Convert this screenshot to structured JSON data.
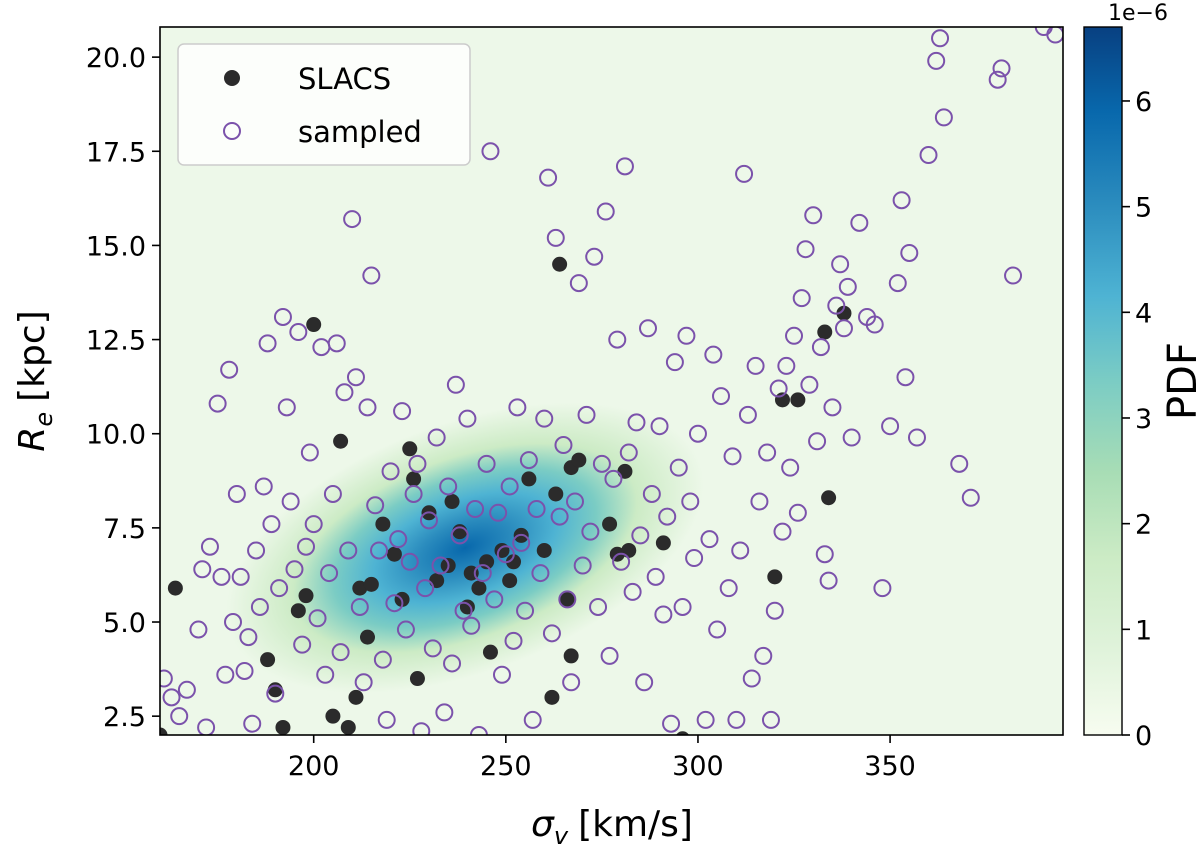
{
  "chart_data": {
    "type": "scatter",
    "xlabel": "σ",
    "xlabel_sub": "v",
    "xlabel_unit": "[km/s]",
    "ylabel": "R",
    "ylabel_sub": "e",
    "ylabel_unit": "[kpc]",
    "xlim": [
      160,
      395
    ],
    "ylim": [
      2.0,
      20.8
    ],
    "x_ticks": [
      200,
      250,
      300,
      350
    ],
    "x_tick_labels": [
      "200",
      "250",
      "300",
      "350"
    ],
    "y_ticks": [
      2.5,
      5.0,
      7.5,
      10.0,
      12.5,
      15.0,
      17.5,
      20.0
    ],
    "y_tick_labels": [
      "2.5",
      "5.0",
      "7.5",
      "10.0",
      "12.5",
      "15.0",
      "17.5",
      "20.0"
    ],
    "legend_position": "top-left",
    "background": {
      "type": "kde-heatmap",
      "colormap": "GnBu",
      "peak": {
        "x": 245,
        "y": 6.8
      },
      "colors": [
        "#f7fcf0",
        "#e0f3db",
        "#ccebc5",
        "#a8ddb5",
        "#7bccc4",
        "#4eb3d3",
        "#2b8cbe",
        "#0868ac",
        "#084081"
      ]
    },
    "colorbar": {
      "label": "PDF",
      "offset_text": "1e−6",
      "min": 0,
      "max": 6.7,
      "ticks": [
        0,
        1,
        2,
        3,
        4,
        5,
        6
      ],
      "tick_labels": [
        "0",
        "1",
        "2",
        "3",
        "4",
        "5",
        "6"
      ]
    },
    "series": [
      {
        "name": "SLACS",
        "marker": "filled-circle",
        "color": "#2b2b2b",
        "points": [
          [
            164,
            5.9
          ],
          [
            160,
            2.0
          ],
          [
            188,
            4.0
          ],
          [
            190,
            3.2
          ],
          [
            192,
            2.2
          ],
          [
            196,
            5.3
          ],
          [
            198,
            5.7
          ],
          [
            200,
            12.9
          ],
          [
            205,
            2.5
          ],
          [
            207,
            9.8
          ],
          [
            209,
            2.2
          ],
          [
            211,
            3.0
          ],
          [
            212,
            5.9
          ],
          [
            214,
            4.6
          ],
          [
            215,
            6.0
          ],
          [
            218,
            7.6
          ],
          [
            221,
            6.8
          ],
          [
            223,
            5.6
          ],
          [
            225,
            9.6
          ],
          [
            226,
            8.8
          ],
          [
            227,
            3.5
          ],
          [
            230,
            7.9
          ],
          [
            232,
            6.1
          ],
          [
            235,
            6.5
          ],
          [
            236,
            8.2
          ],
          [
            238,
            7.4
          ],
          [
            240,
            5.4
          ],
          [
            241,
            6.3
          ],
          [
            243,
            5.9
          ],
          [
            245,
            6.6
          ],
          [
            246,
            4.2
          ],
          [
            249,
            6.9
          ],
          [
            251,
            6.1
          ],
          [
            252,
            6.6
          ],
          [
            254,
            7.3
          ],
          [
            256,
            8.8
          ],
          [
            260,
            6.9
          ],
          [
            262,
            3.0
          ],
          [
            263,
            8.4
          ],
          [
            264,
            14.5
          ],
          [
            266,
            5.6
          ],
          [
            267,
            4.1
          ],
          [
            267,
            9.1
          ],
          [
            269,
            9.3
          ],
          [
            277,
            7.6
          ],
          [
            279,
            6.8
          ],
          [
            281,
            9.0
          ],
          [
            282,
            6.9
          ],
          [
            291,
            7.1
          ],
          [
            296,
            1.9
          ],
          [
            320,
            6.2
          ],
          [
            322,
            10.9
          ],
          [
            326,
            10.9
          ],
          [
            333,
            12.7
          ],
          [
            334,
            8.3
          ],
          [
            338,
            13.2
          ]
        ]
      },
      {
        "name": "sampled",
        "marker": "open-circle",
        "color": "#7b52ab",
        "points": [
          [
            161,
            3.5
          ],
          [
            163,
            3.0
          ],
          [
            165,
            2.5
          ],
          [
            167,
            3.2
          ],
          [
            170,
            4.8
          ],
          [
            171,
            6.4
          ],
          [
            172,
            2.2
          ],
          [
            173,
            7.0
          ],
          [
            175,
            10.8
          ],
          [
            176,
            6.2
          ],
          [
            177,
            3.6
          ],
          [
            178,
            11.7
          ],
          [
            179,
            5.0
          ],
          [
            180,
            8.4
          ],
          [
            181,
            6.2
          ],
          [
            182,
            3.7
          ],
          [
            183,
            4.6
          ],
          [
            184,
            2.3
          ],
          [
            185,
            6.9
          ],
          [
            186,
            5.4
          ],
          [
            187,
            8.6
          ],
          [
            188,
            12.4
          ],
          [
            189,
            7.6
          ],
          [
            190,
            3.1
          ],
          [
            191,
            5.9
          ],
          [
            192,
            13.1
          ],
          [
            193,
            10.7
          ],
          [
            194,
            8.2
          ],
          [
            195,
            6.4
          ],
          [
            196,
            12.7
          ],
          [
            197,
            4.4
          ],
          [
            198,
            7.0
          ],
          [
            199,
            9.5
          ],
          [
            200,
            7.6
          ],
          [
            201,
            5.1
          ],
          [
            202,
            12.3
          ],
          [
            203,
            3.6
          ],
          [
            204,
            6.3
          ],
          [
            205,
            8.4
          ],
          [
            206,
            12.4
          ],
          [
            207,
            4.2
          ],
          [
            208,
            11.1
          ],
          [
            209,
            6.9
          ],
          [
            210,
            15.7
          ],
          [
            211,
            11.5
          ],
          [
            212,
            5.4
          ],
          [
            213,
            3.4
          ],
          [
            214,
            10.7
          ],
          [
            215,
            14.2
          ],
          [
            216,
            8.1
          ],
          [
            217,
            6.9
          ],
          [
            218,
            4.0
          ],
          [
            219,
            2.4
          ],
          [
            220,
            9.0
          ],
          [
            221,
            5.5
          ],
          [
            222,
            7.2
          ],
          [
            223,
            10.6
          ],
          [
            224,
            4.8
          ],
          [
            225,
            6.6
          ],
          [
            226,
            8.4
          ],
          [
            227,
            9.2
          ],
          [
            228,
            2.1
          ],
          [
            229,
            5.9
          ],
          [
            230,
            7.7
          ],
          [
            231,
            4.3
          ],
          [
            232,
            9.9
          ],
          [
            233,
            6.5
          ],
          [
            234,
            2.6
          ],
          [
            235,
            8.6
          ],
          [
            236,
            3.9
          ],
          [
            237,
            11.3
          ],
          [
            238,
            7.3
          ],
          [
            239,
            5.3
          ],
          [
            240,
            10.4
          ],
          [
            241,
            4.9
          ],
          [
            242,
            8.0
          ],
          [
            243,
            2.0
          ],
          [
            244,
            6.3
          ],
          [
            245,
            9.2
          ],
          [
            246,
            17.5
          ],
          [
            247,
            5.6
          ],
          [
            248,
            7.9
          ],
          [
            249,
            3.6
          ],
          [
            250,
            6.8
          ],
          [
            251,
            8.6
          ],
          [
            252,
            4.5
          ],
          [
            253,
            10.7
          ],
          [
            254,
            7.1
          ],
          [
            255,
            5.3
          ],
          [
            256,
            9.3
          ],
          [
            257,
            2.4
          ],
          [
            258,
            8.0
          ],
          [
            259,
            6.3
          ],
          [
            260,
            10.4
          ],
          [
            261,
            16.8
          ],
          [
            262,
            4.7
          ],
          [
            263,
            15.2
          ],
          [
            264,
            7.8
          ],
          [
            265,
            9.7
          ],
          [
            266,
            5.6
          ],
          [
            267,
            3.4
          ],
          [
            268,
            8.2
          ],
          [
            269,
            14.0
          ],
          [
            270,
            6.5
          ],
          [
            271,
            10.5
          ],
          [
            272,
            7.4
          ],
          [
            273,
            14.7
          ],
          [
            274,
            5.4
          ],
          [
            275,
            9.2
          ],
          [
            276,
            15.9
          ],
          [
            277,
            4.1
          ],
          [
            278,
            8.8
          ],
          [
            279,
            12.5
          ],
          [
            280,
            6.6
          ],
          [
            281,
            17.1
          ],
          [
            282,
            9.5
          ],
          [
            283,
            5.8
          ],
          [
            284,
            10.3
          ],
          [
            285,
            7.3
          ],
          [
            286,
            3.4
          ],
          [
            287,
            12.8
          ],
          [
            288,
            8.4
          ],
          [
            289,
            6.2
          ],
          [
            290,
            10.2
          ],
          [
            291,
            5.2
          ],
          [
            292,
            7.8
          ],
          [
            293,
            2.3
          ],
          [
            294,
            11.9
          ],
          [
            295,
            9.1
          ],
          [
            296,
            5.4
          ],
          [
            297,
            12.6
          ],
          [
            298,
            8.2
          ],
          [
            299,
            6.7
          ],
          [
            300,
            10.0
          ],
          [
            302,
            2.4
          ],
          [
            303,
            7.2
          ],
          [
            304,
            12.1
          ],
          [
            305,
            4.8
          ],
          [
            306,
            11.0
          ],
          [
            308,
            5.9
          ],
          [
            309,
            9.4
          ],
          [
            310,
            2.4
          ],
          [
            311,
            6.9
          ],
          [
            312,
            16.9
          ],
          [
            313,
            10.5
          ],
          [
            314,
            3.5
          ],
          [
            315,
            11.8
          ],
          [
            316,
            8.2
          ],
          [
            317,
            4.1
          ],
          [
            318,
            9.5
          ],
          [
            319,
            2.4
          ],
          [
            320,
            5.3
          ],
          [
            321,
            11.2
          ],
          [
            322,
            7.4
          ],
          [
            323,
            11.8
          ],
          [
            324,
            9.1
          ],
          [
            325,
            12.6
          ],
          [
            326,
            7.9
          ],
          [
            327,
            13.6
          ],
          [
            328,
            14.9
          ],
          [
            329,
            11.3
          ],
          [
            330,
            15.8
          ],
          [
            331,
            9.8
          ],
          [
            332,
            12.3
          ],
          [
            333,
            6.8
          ],
          [
            334,
            6.1
          ],
          [
            335,
            10.7
          ],
          [
            336,
            13.4
          ],
          [
            337,
            14.5
          ],
          [
            338,
            12.8
          ],
          [
            339,
            13.9
          ],
          [
            340,
            9.9
          ],
          [
            342,
            15.6
          ],
          [
            344,
            13.1
          ],
          [
            346,
            12.9
          ],
          [
            348,
            5.9
          ],
          [
            350,
            10.2
          ],
          [
            352,
            14.0
          ],
          [
            353,
            16.2
          ],
          [
            354,
            11.5
          ],
          [
            355,
            14.8
          ],
          [
            357,
            9.9
          ],
          [
            360,
            17.4
          ],
          [
            362,
            19.9
          ],
          [
            363,
            20.5
          ],
          [
            364,
            18.4
          ],
          [
            368,
            9.2
          ],
          [
            371,
            8.3
          ],
          [
            378,
            19.4
          ],
          [
            379,
            19.7
          ],
          [
            382,
            14.2
          ],
          [
            390,
            20.8
          ],
          [
            393,
            20.6
          ]
        ]
      }
    ]
  }
}
